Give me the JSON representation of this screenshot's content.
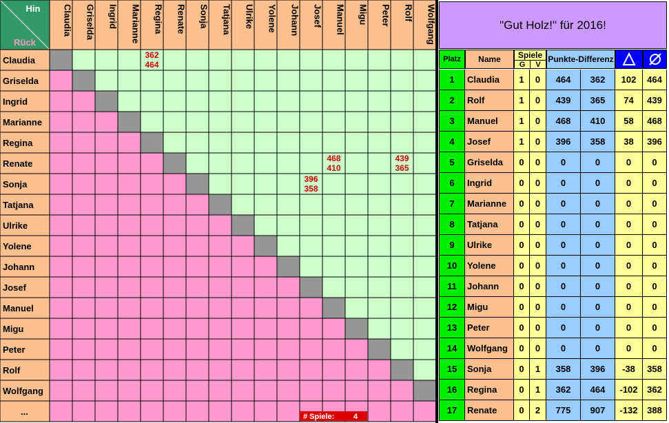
{
  "colors": {
    "header_green": "#339966",
    "name_peach": "#fac090",
    "hin_green": "#ccffcc",
    "rueck_pink": "#ff99cc",
    "diagonal_gray": "#969696",
    "title_purple": "#cc99ff",
    "platz_green": "#00ee00",
    "spiele_yellow": "#ffff99",
    "punkte_blue": "#99ccff",
    "icon_blue": "#0000ff",
    "score_red": "#cc0000",
    "counter_red": "#dd0000"
  },
  "matrix": {
    "corner_hin": "Hin",
    "corner_rueck": "Rück",
    "players": [
      "Claudia",
      "Griselda",
      "Ingrid",
      "Marianne",
      "Regina",
      "Renate",
      "Sonja",
      "Tatjana",
      "Ulrike",
      "Yolene",
      "Johann",
      "Josef",
      "Manuel",
      "Migu",
      "Peter",
      "Rolf",
      "Wolfgang"
    ],
    "extra_row_label": "...",
    "scores": [
      {
        "row": "Claudia",
        "col": "Regina",
        "top": "362",
        "bottom": "464"
      },
      {
        "row": "Renate",
        "col": "Manuel",
        "top": "468",
        "bottom": "410"
      },
      {
        "row": "Renate",
        "col": "Rolf",
        "top": "439",
        "bottom": "365"
      },
      {
        "row": "Sonja",
        "col": "Josef",
        "top": "396",
        "bottom": "358"
      }
    ],
    "games_counter_label": "# Spiele:",
    "games_counter_value": "4"
  },
  "table": {
    "title": "\"Gut Holz!\" für 2016!",
    "headers": {
      "platz": "Platz",
      "name": "Name",
      "spiele": "Spiele",
      "g": "G",
      "v": "V",
      "punkte": "Punkte-Differenz",
      "delta_icon": "delta-icon",
      "average_icon": "average-icon"
    },
    "rows": [
      {
        "platz": "1",
        "name": "Claudia",
        "g": "1",
        "v": "0",
        "p1": "464",
        "p2": "362",
        "delta": "102",
        "avg": "464"
      },
      {
        "platz": "2",
        "name": "Rolf",
        "g": "1",
        "v": "0",
        "p1": "439",
        "p2": "365",
        "delta": "74",
        "avg": "439"
      },
      {
        "platz": "3",
        "name": "Manuel",
        "g": "1",
        "v": "0",
        "p1": "468",
        "p2": "410",
        "delta": "58",
        "avg": "468"
      },
      {
        "platz": "4",
        "name": "Josef",
        "g": "1",
        "v": "0",
        "p1": "396",
        "p2": "358",
        "delta": "38",
        "avg": "396"
      },
      {
        "platz": "5",
        "name": "Griselda",
        "g": "0",
        "v": "0",
        "p1": "0",
        "p2": "0",
        "delta": "0",
        "avg": "0"
      },
      {
        "platz": "6",
        "name": "Ingrid",
        "g": "0",
        "v": "0",
        "p1": "0",
        "p2": "0",
        "delta": "0",
        "avg": "0"
      },
      {
        "platz": "7",
        "name": "Marianne",
        "g": "0",
        "v": "0",
        "p1": "0",
        "p2": "0",
        "delta": "0",
        "avg": "0"
      },
      {
        "platz": "8",
        "name": "Tatjana",
        "g": "0",
        "v": "0",
        "p1": "0",
        "p2": "0",
        "delta": "0",
        "avg": "0"
      },
      {
        "platz": "9",
        "name": "Ulrike",
        "g": "0",
        "v": "0",
        "p1": "0",
        "p2": "0",
        "delta": "0",
        "avg": "0"
      },
      {
        "platz": "10",
        "name": "Yolene",
        "g": "0",
        "v": "0",
        "p1": "0",
        "p2": "0",
        "delta": "0",
        "avg": "0"
      },
      {
        "platz": "11",
        "name": "Johann",
        "g": "0",
        "v": "0",
        "p1": "0",
        "p2": "0",
        "delta": "0",
        "avg": "0"
      },
      {
        "platz": "12",
        "name": "Migu",
        "g": "0",
        "v": "0",
        "p1": "0",
        "p2": "0",
        "delta": "0",
        "avg": "0"
      },
      {
        "platz": "13",
        "name": "Peter",
        "g": "0",
        "v": "0",
        "p1": "0",
        "p2": "0",
        "delta": "0",
        "avg": "0"
      },
      {
        "platz": "14",
        "name": "Wolfgang",
        "g": "0",
        "v": "0",
        "p1": "0",
        "p2": "0",
        "delta": "0",
        "avg": "0"
      },
      {
        "platz": "15",
        "name": "Sonja",
        "g": "0",
        "v": "1",
        "p1": "358",
        "p2": "396",
        "delta": "-38",
        "avg": "358"
      },
      {
        "platz": "16",
        "name": "Regina",
        "g": "0",
        "v": "1",
        "p1": "362",
        "p2": "464",
        "delta": "-102",
        "avg": "362"
      },
      {
        "platz": "17",
        "name": "Renate",
        "g": "0",
        "v": "2",
        "p1": "775",
        "p2": "907",
        "delta": "-132",
        "avg": "388"
      }
    ]
  }
}
